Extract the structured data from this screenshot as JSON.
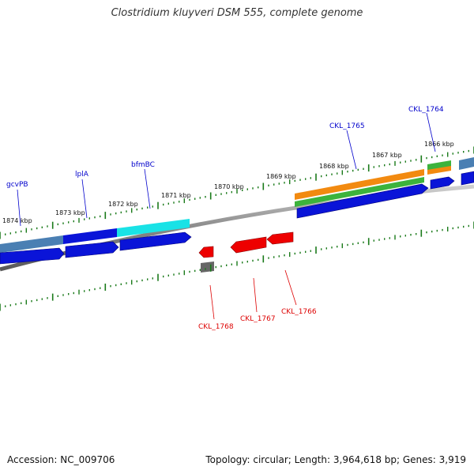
{
  "title": "Clostridium kluyveri DSM 555, complete genome",
  "footer": {
    "accession": "Accession: NC_009706",
    "topology": "Topology: circular; Length: 3,964,618 bp; Genes: 3,919"
  },
  "colors": {
    "forward_gene_label": "#0000cc",
    "reverse_gene_label": "#dd0000",
    "tick": "#1a7a1a",
    "backbone": "#888888"
  },
  "position_labels": [
    "1874 kbp",
    "1873 kbp",
    "1872 kbp",
    "1871 kbp",
    "1870 kbp",
    "1869 kbp",
    "1868 kbp",
    "1867 kbp",
    "1866 kbp"
  ],
  "gene_labels": {
    "forward": [
      "gcvPB",
      "lplA",
      "bfmBC",
      "CKL_1765",
      "CKL_1764"
    ],
    "reverse": [
      "CKL_1768",
      "CKL_1767",
      "CKL_1766"
    ]
  }
}
